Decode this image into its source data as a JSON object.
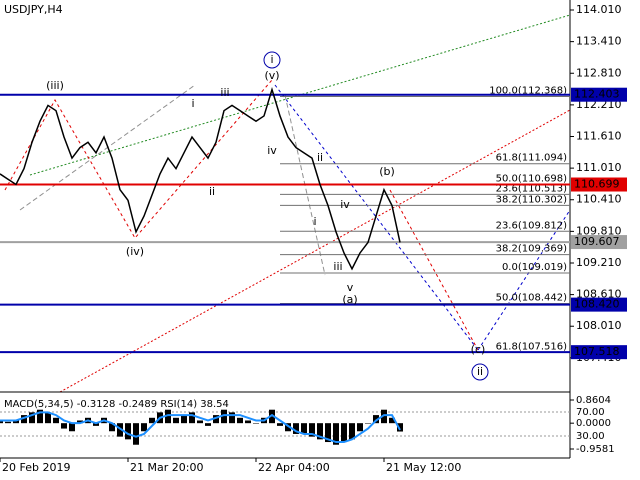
{
  "chart_data": {
    "type": "line",
    "title": "USDJPY,H4",
    "values": [
      110.9,
      110.8,
      110.7,
      111.0,
      111.5,
      111.9,
      112.2,
      112.1,
      111.6,
      111.2,
      111.4,
      111.5,
      111.3,
      111.6,
      111.2,
      110.6,
      110.4,
      109.8,
      110.1,
      110.5,
      110.9,
      111.2,
      111.0,
      111.3,
      111.6,
      111.4,
      111.2,
      111.5,
      112.1,
      112.2,
      112.1,
      112.0,
      111.9,
      112.0,
      112.5,
      112.0,
      111.6,
      111.4,
      111.3,
      111.2,
      110.7,
      110.3,
      109.8,
      109.4,
      109.1,
      109.4,
      109.6,
      110.1,
      110.6,
      110.3,
      109.6
    ],
    "color": "#000000",
    "ylim": [
      106.8,
      114.2
    ],
    "yticks": [
      {
        "value": 114.01,
        "label": "114.010"
      },
      {
        "value": 113.41,
        "label": "113.410"
      },
      {
        "value": 112.81,
        "label": "112.810"
      },
      {
        "value": 112.21,
        "label": "112.210"
      },
      {
        "value": 111.61,
        "label": "111.610"
      },
      {
        "value": 111.01,
        "label": "111.010"
      },
      {
        "value": 110.41,
        "label": "110.410"
      },
      {
        "value": 109.81,
        "label": "109.810"
      },
      {
        "value": 109.21,
        "label": "109.210"
      },
      {
        "value": 108.61,
        "label": "108.610"
      },
      {
        "value": 108.01,
        "label": "108.010"
      },
      {
        "value": 107.41,
        "label": "107.410"
      }
    ],
    "xticks": [
      {
        "value": 0,
        "label": "20 Feb 2019"
      },
      {
        "value": 16,
        "label": "21 Mar 20:00"
      },
      {
        "value": 32,
        "label": "22 Apr 04:00"
      },
      {
        "value": 48,
        "label": "21 May 12:00"
      }
    ],
    "levels": [
      {
        "value": 112.403,
        "label": "112.403",
        "color": "#0000aa"
      },
      {
        "value": 110.699,
        "label": "110.699",
        "color": "#e00000"
      },
      {
        "value": 109.607,
        "label": "109.607",
        "color": "#a0a0a0"
      },
      {
        "value": 108.42,
        "label": "108.420",
        "color": "#0000aa"
      },
      {
        "value": 107.518,
        "label": "107.518",
        "color": "#0000aa"
      }
    ],
    "fib_levels": [
      {
        "value": 112.368,
        "label": "100.0(112.368)"
      },
      {
        "value": 111.094,
        "label": "61.8(111.094)"
      },
      {
        "value": 110.698,
        "label": "50.0(110.698)"
      },
      {
        "value": 110.513,
        "label": "23.6(110.513)"
      },
      {
        "value": 110.302,
        "label": "38.2(110.302)"
      },
      {
        "value": 109.812,
        "label": "23.6(109.812)"
      },
      {
        "value": 109.369,
        "label": "38.2(109.369)"
      },
      {
        "value": 109.019,
        "label": "0.0(109.019)"
      },
      {
        "value": 108.442,
        "label": "50.0(108.442)"
      },
      {
        "value": 107.516,
        "label": "61.8(107.516)"
      }
    ],
    "wave_labels": [
      {
        "text": "(iii)",
        "color": "#e00000"
      },
      {
        "text": "(iv)",
        "color": "#e00000"
      },
      {
        "text": "(v)",
        "color": "#e00000"
      },
      {
        "text": "i",
        "color": "#0000aa"
      },
      {
        "text": "(a)",
        "color": "#e00000"
      },
      {
        "text": "(b)",
        "color": "#e00000"
      },
      {
        "text": "(c)",
        "color": "#e00000"
      },
      {
        "text": "ii",
        "color": "#0000aa"
      },
      {
        "text": "i",
        "color": "#707070"
      },
      {
        "text": "iii",
        "color": "#707070"
      },
      {
        "text": "ii",
        "color": "#707070"
      },
      {
        "text": "iv",
        "color": "#707070"
      },
      {
        "text": "ii",
        "color": "#707070"
      },
      {
        "text": "i",
        "color": "#707070"
      },
      {
        "text": "iv",
        "color": "#707070"
      },
      {
        "text": "iii",
        "color": "#707070"
      },
      {
        "text": "v",
        "color": "#707070"
      }
    ],
    "indicator": {
      "title": "MACD(5,34,5) -0.3128 -0.2489 RSI(14) 38.54",
      "histogram": [
        0.1,
        0.05,
        0.1,
        0.3,
        0.4,
        0.5,
        0.4,
        0.2,
        -0.2,
        -0.3,
        0.1,
        0.2,
        -0.1,
        0.2,
        -0.3,
        -0.5,
        -0.6,
        -0.8,
        -0.3,
        0.2,
        0.4,
        0.5,
        0.2,
        0.3,
        0.4,
        0.1,
        -0.1,
        0.3,
        0.5,
        0.4,
        0.2,
        0.1,
        0.0,
        0.2,
        0.5,
        -0.1,
        -0.3,
        -0.4,
        -0.4,
        -0.5,
        -0.6,
        -0.7,
        -0.8,
        -0.7,
        -0.6,
        -0.3,
        0.0,
        0.3,
        0.5,
        0.2,
        -0.31
      ],
      "histogram_color": "#000000",
      "signal": [
        0.1,
        0.1,
        0.1,
        0.2,
        0.3,
        0.4,
        0.4,
        0.3,
        0.1,
        0.0,
        0.0,
        0.1,
        0.0,
        0.1,
        0.0,
        -0.2,
        -0.4,
        -0.5,
        -0.4,
        -0.1,
        0.2,
        0.3,
        0.3,
        0.3,
        0.3,
        0.2,
        0.1,
        0.2,
        0.3,
        0.3,
        0.3,
        0.2,
        0.1,
        0.1,
        0.3,
        0.1,
        -0.1,
        -0.3,
        -0.4,
        -0.4,
        -0.5,
        -0.6,
        -0.7,
        -0.7,
        -0.6,
        -0.4,
        -0.2,
        0.1,
        0.3,
        0.3,
        -0.25
      ],
      "signal_color": "#1e90ff",
      "ylim": [
        -1.144,
        1.083
      ],
      "yticks": [
        {
          "value": 0.8604,
          "label": "0.8604"
        },
        {
          "value": 0,
          "label": "0.0000"
        },
        {
          "value": -0.9581,
          "label": "-0.9581"
        }
      ],
      "rsi_ylim": [
        0,
        100
      ],
      "rsi_yticks": [
        {
          "value": 70,
          "label": "70.00"
        },
        {
          "value": 30,
          "label": "30.00"
        }
      ]
    }
  }
}
